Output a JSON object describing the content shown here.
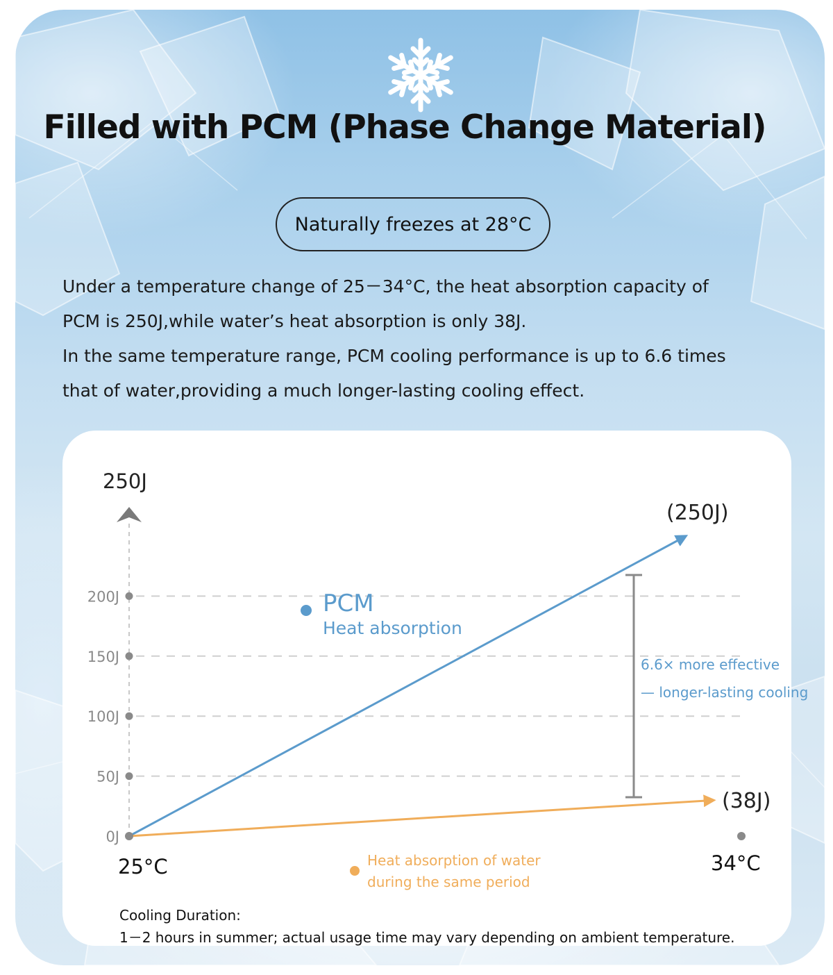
{
  "header": {
    "title": "Filled with PCM (Phase Change Material)",
    "badge": "Naturally freezes at 28°C"
  },
  "description": [
    "Under a temperature change of 25－34°C, the heat absorption capacity of",
    "PCM is 250J,while water’s heat absorption is only 38J.",
    "In the same temperature range, PCM cooling performance is up to 6.6 times",
    "that of water,providing a much longer-lasting cooling effect."
  ],
  "chart_data": {
    "type": "line",
    "x": [
      "25°C",
      "34°C"
    ],
    "y_axis_top_label": "250J",
    "y_ticks": [
      {
        "value": 0,
        "label": "0J"
      },
      {
        "value": 50,
        "label": "50J"
      },
      {
        "value": 100,
        "label": "100J"
      },
      {
        "value": 150,
        "label": "150J"
      },
      {
        "value": 200,
        "label": "200J"
      }
    ],
    "ylim": [
      0,
      250
    ],
    "grid": true,
    "series": [
      {
        "name": "PCM",
        "sublabel": "Heat absorption",
        "values": [
          0,
          250
        ],
        "end_label": "(250J)",
        "color": "#5b9bcc"
      },
      {
        "name": "Heat absorption of water",
        "sublabel": "during the same period",
        "values": [
          0,
          38
        ],
        "end_label": "(38J)",
        "color": "#f0ad5a"
      }
    ],
    "annotation": {
      "lines": [
        "6.6× more effective",
        "— longer-lasting cooling"
      ],
      "color": "#5b9bcc"
    }
  },
  "footer": {
    "heading": "Cooling Duration:",
    "text": "1－2 hours in summer; actual usage time may vary depending on ambient temperature."
  }
}
